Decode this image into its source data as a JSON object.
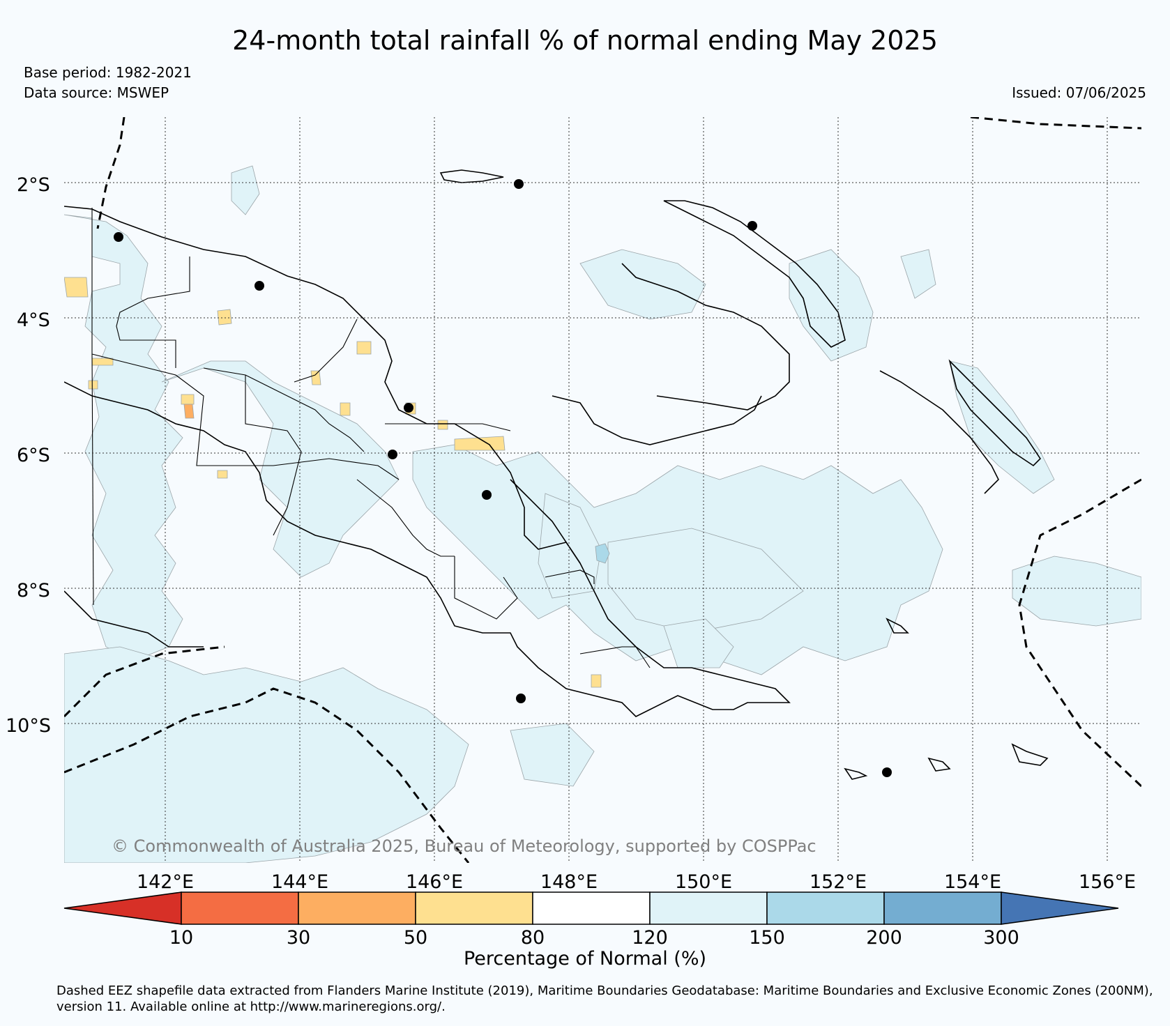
{
  "title": "24-month total rainfall % of normal ending May 2025",
  "base_period": "Base period: 1982-2021",
  "data_source": "Data source: MSWEP",
  "issued": "Issued: 07/06/2025",
  "copyright": "© Commonwealth of Australia 2025, Bureau of Meteorology, supported by COSPPac",
  "lat_labels": [
    "2°S",
    "4°S",
    "6°S",
    "8°S",
    "10°S"
  ],
  "lon_labels": [
    "142°E",
    "144°E",
    "146°E",
    "148°E",
    "150°E",
    "152°E",
    "154°E",
    "156°E"
  ],
  "colorbar": {
    "label": "Percentage of Normal (%)",
    "ticks": [
      "10",
      "30",
      "50",
      "80",
      "120",
      "150",
      "200",
      "300"
    ],
    "colors": [
      "#d73027",
      "#f46d43",
      "#fdae61",
      "#fee090",
      "#ffffff",
      "#e0f3f8",
      "#abd9e9",
      "#74add1",
      "#4575b4"
    ]
  },
  "map_colors": {
    "background": "#f7fbfe",
    "light_blue": "#e0f3f8",
    "medium_blue": "#abd9e9",
    "yellow": "#fee090",
    "orange": "#fdae61",
    "red_orange": "#f46d43"
  },
  "footer": "Dashed EEZ shapefile data extracted from Flanders Marine Institute (2019), Maritime Boundaries Geodatabase: Maritime Boundaries and Exclusive Economic Zones (200NM), version 11. Available online at http://www.marineregions.org/."
}
